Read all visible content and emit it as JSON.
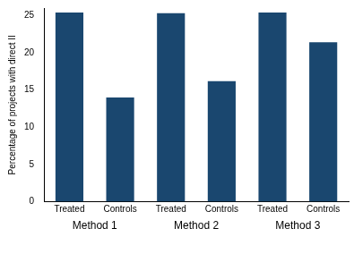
{
  "chart_data": {
    "type": "bar",
    "y_label": "Percentage of projects with direct II",
    "categories": [
      "Method 1",
      "Method 2",
      "Method 3"
    ],
    "series": [
      {
        "name": "Treated",
        "color": "#1a476f",
        "values": [
          25.4,
          25.3,
          25.4
        ]
      },
      {
        "name": "Controls",
        "color": "#1a476f",
        "values": [
          14.0,
          16.2,
          21.4
        ]
      }
    ],
    "ylim": [
      0,
      26
    ],
    "yticks": [
      0,
      5,
      10,
      15,
      20,
      25
    ],
    "grid": false
  }
}
